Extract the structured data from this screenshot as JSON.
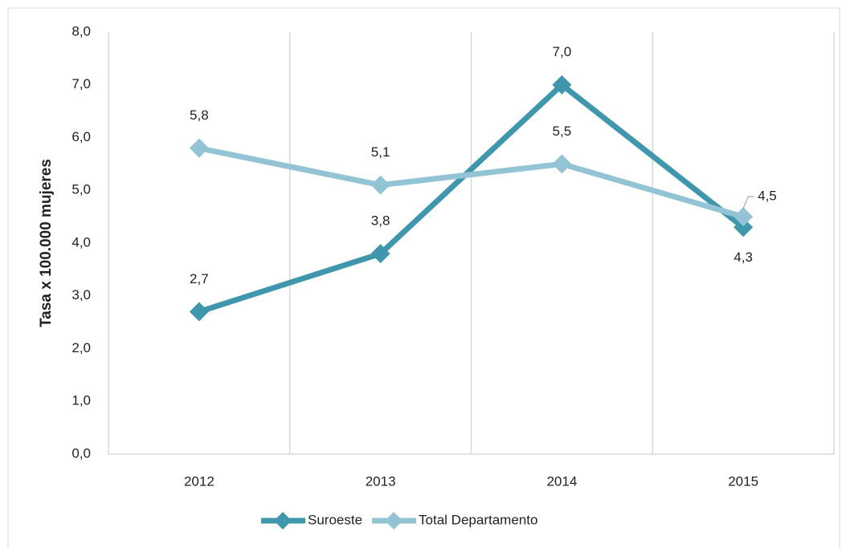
{
  "chart_data": {
    "type": "line",
    "y_label": "Tasa x 100.000 mujeres",
    "categories": [
      "2012",
      "2013",
      "2014",
      "2015"
    ],
    "series": [
      {
        "name": "Suroeste",
        "color": "#3e97ad",
        "values": [
          2.7,
          3.8,
          7.0,
          4.3
        ],
        "value_labels": [
          "2,7",
          "3,8",
          "7,0",
          "4,3"
        ]
      },
      {
        "name": "Total Departamento",
        "color": "#93c4d6",
        "values": [
          5.8,
          5.1,
          5.5,
          4.5
        ],
        "value_labels": [
          "5,8",
          "5,1",
          "5,5",
          "4,5"
        ]
      }
    ],
    "ylim": [
      0,
      8
    ],
    "yticks": [
      {
        "value": 0,
        "label": "0,0"
      },
      {
        "value": 1,
        "label": "1,0"
      },
      {
        "value": 2,
        "label": "2,0"
      },
      {
        "value": 3,
        "label": "3,0"
      },
      {
        "value": 4,
        "label": "4,0"
      },
      {
        "value": 5,
        "label": "5,0"
      },
      {
        "value": 6,
        "label": "6,0"
      },
      {
        "value": 7,
        "label": "7,0"
      },
      {
        "value": 8,
        "label": "8,0"
      }
    ],
    "grid": true,
    "legend": "bottom"
  }
}
